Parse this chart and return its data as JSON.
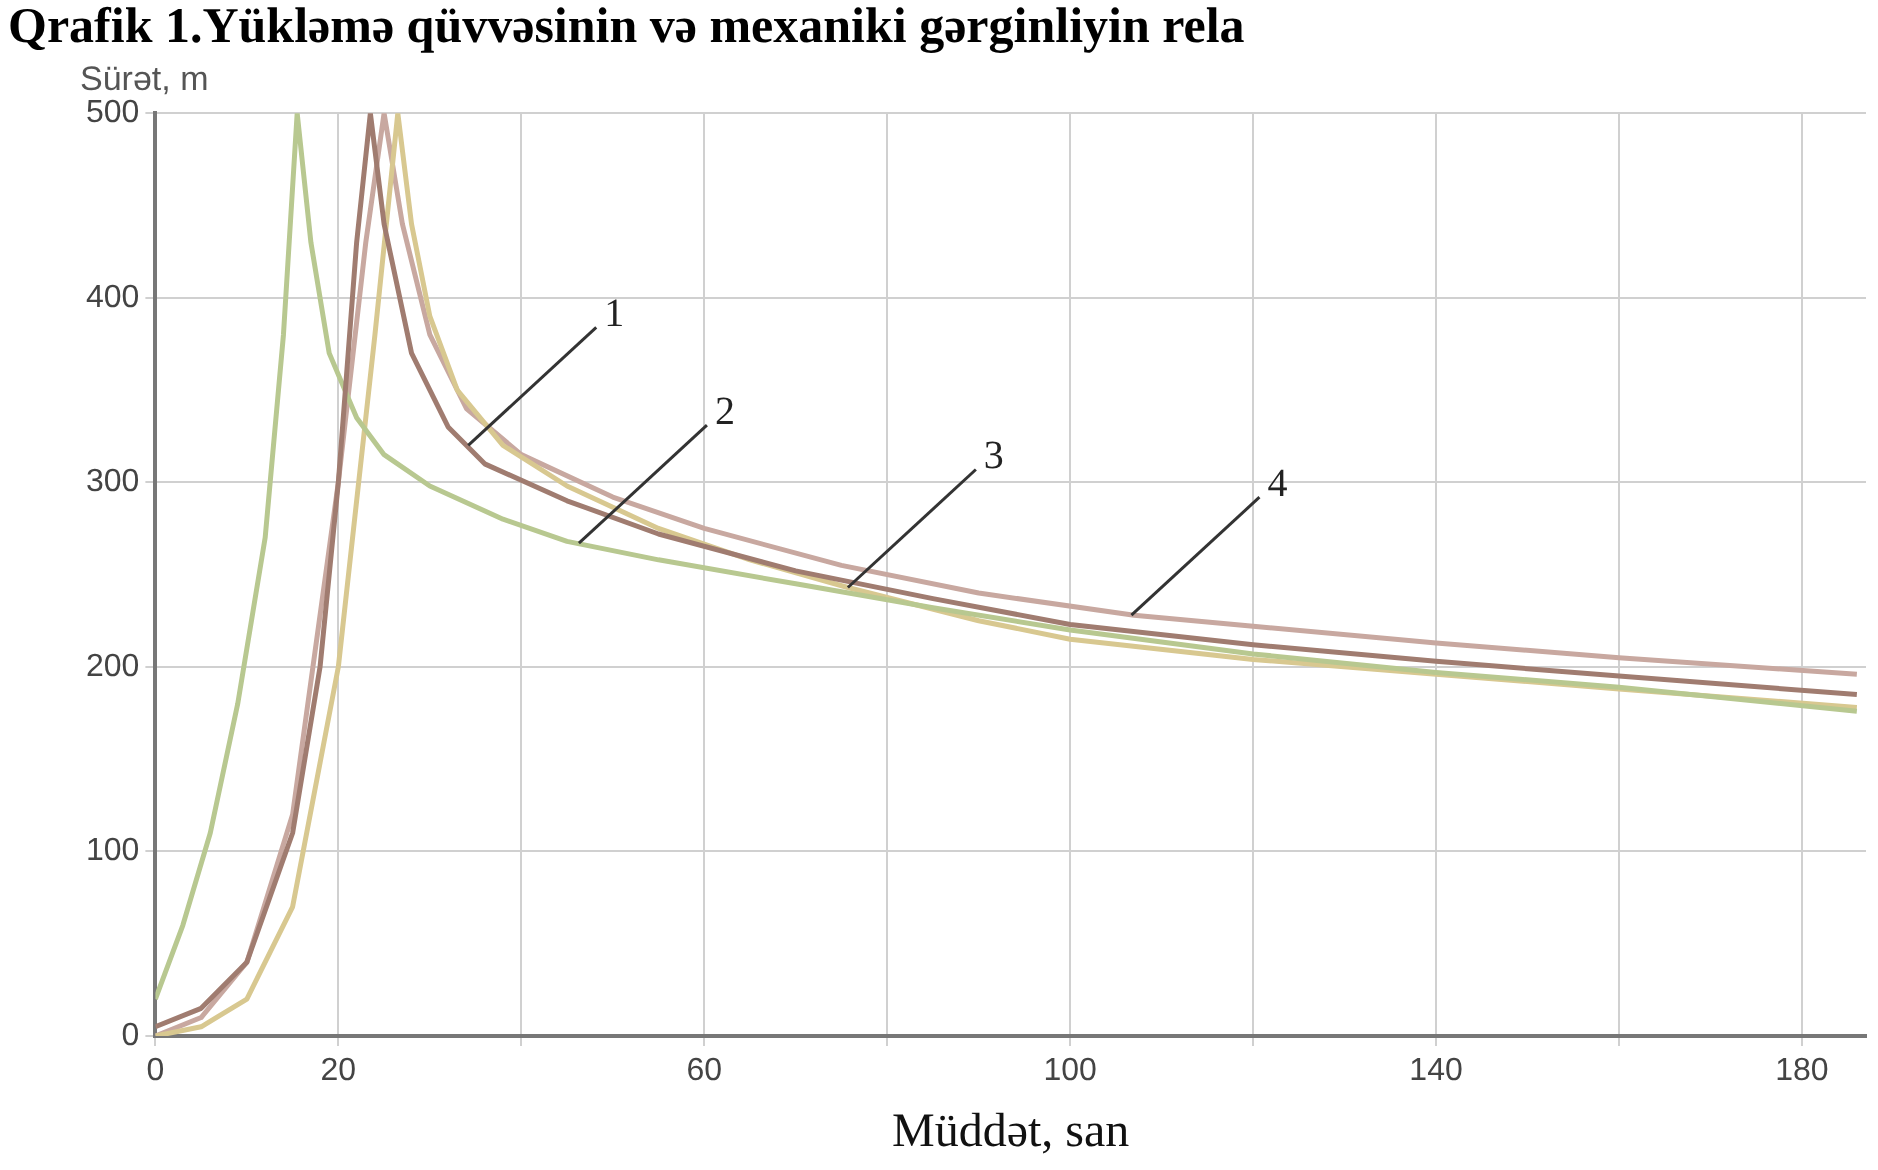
{
  "chart_data": {
    "type": "line",
    "title": "Qrafik 1.Yükləmə qüvvəsinin və mexaniki gərginliyin rela",
    "xlabel": "Müddət, san",
    "ylabel": "Sürət, m",
    "xlim": [
      0,
      187
    ],
    "xticks": [
      0,
      20,
      {
        "value": 40,
        "label": null
      },
      60,
      {
        "value": 80,
        "label": null
      },
      100,
      {
        "value": 120,
        "label": null
      },
      140,
      {
        "value": 160,
        "label": null
      },
      180
    ],
    "ylim": [
      0,
      500
    ],
    "yticks": [
      0,
      100,
      200,
      300,
      400,
      500
    ],
    "grid": true,
    "legend": false,
    "marker": "none",
    "line_style": "solid",
    "series": [
      {
        "color": "#a07c70",
        "x": [
          0,
          5,
          10,
          15,
          18,
          20,
          22,
          23.5,
          25,
          28,
          32,
          36,
          45,
          55,
          70,
          85,
          100,
          120,
          140,
          160,
          186
        ],
        "values": [
          5,
          15,
          40,
          110,
          200,
          300,
          430,
          500,
          440,
          370,
          330,
          310,
          290,
          272,
          252,
          237,
          223,
          212,
          203,
          195,
          185
        ]
      },
      {
        "color": "#b8c890",
        "x": [
          0,
          3,
          6,
          9,
          12,
          14,
          15.5,
          17,
          19,
          22,
          25,
          30,
          38,
          45,
          55,
          70,
          85,
          100,
          120,
          140,
          160,
          186
        ],
        "values": [
          20,
          60,
          110,
          180,
          270,
          380,
          500,
          430,
          370,
          335,
          315,
          298,
          280,
          268,
          258,
          245,
          232,
          220,
          207,
          197,
          189,
          176
        ]
      },
      {
        "color": "#d8c890",
        "x": [
          0,
          5,
          10,
          15,
          20,
          24,
          26.5,
          28,
          30,
          33,
          38,
          45,
          55,
          65,
          75.7,
          90,
          100,
          120,
          140,
          160,
          186
        ],
        "values": [
          0,
          5,
          20,
          70,
          200,
          380,
          500,
          440,
          390,
          350,
          320,
          298,
          275,
          258,
          243,
          225,
          215,
          204,
          196,
          188,
          178
        ]
      },
      {
        "color": "#c8a8a0",
        "x": [
          0,
          5,
          10,
          15,
          20,
          23,
          25,
          27,
          30,
          34,
          40,
          50,
          60,
          75,
          90,
          107,
          120,
          140,
          160,
          186
        ],
        "values": [
          0,
          10,
          40,
          120,
          300,
          430,
          500,
          440,
          380,
          340,
          315,
          292,
          275,
          255,
          240,
          228,
          222,
          213,
          205,
          196
        ]
      }
    ],
    "annotations": [
      {
        "text": "1",
        "x": 34.2,
        "y": 320
      },
      {
        "text": "2",
        "x": 46.3,
        "y": 267
      },
      {
        "text": "3",
        "x": 75.7,
        "y": 243
      },
      {
        "text": "4",
        "x": 106.7,
        "y": 228
      }
    ]
  }
}
